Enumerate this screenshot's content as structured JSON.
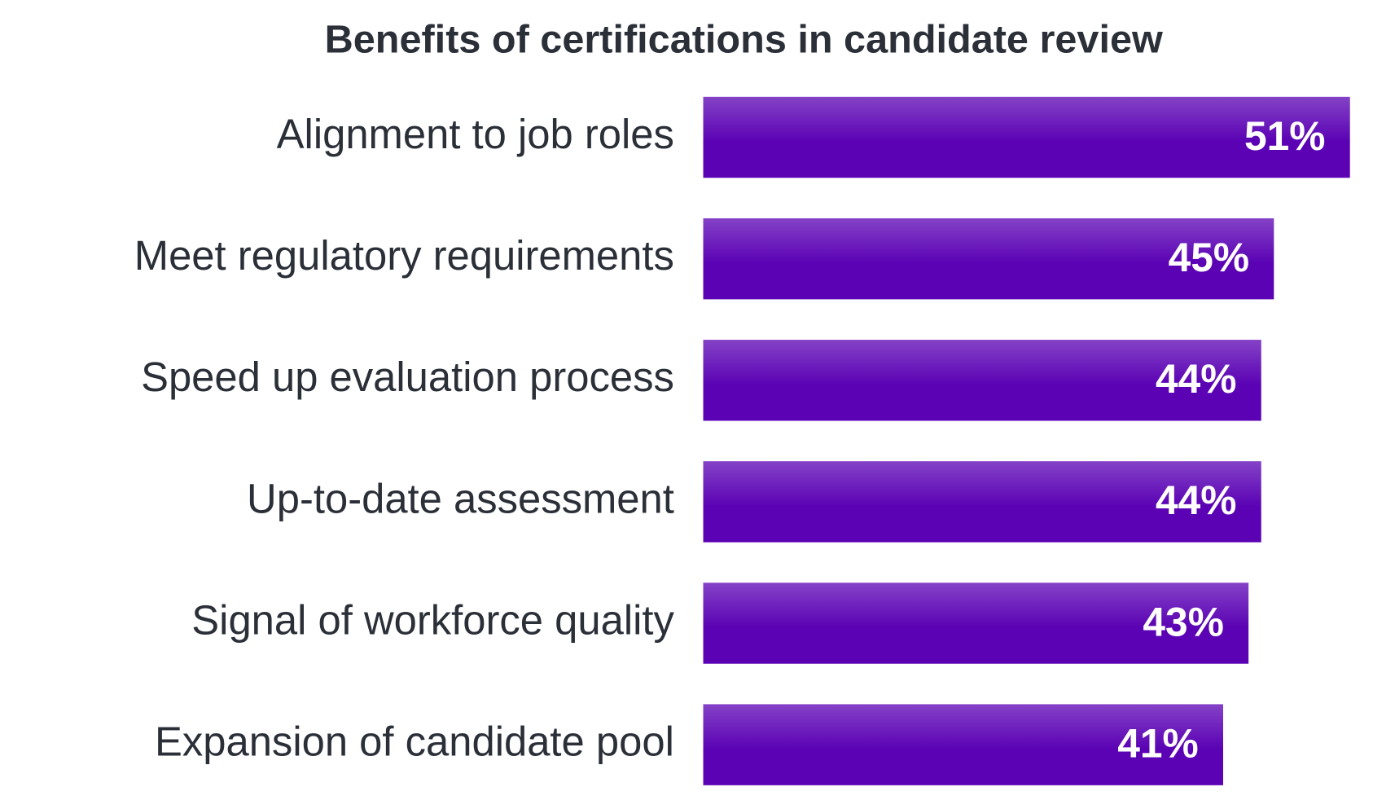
{
  "chart_data": {
    "type": "barh",
    "title": "Benefits of certifications in candidate review",
    "categories": [
      "Alignment to job roles",
      "Meet regulatory requirements",
      "Speed up evaluation process",
      "Up-to-date assessment",
      "Signal of workforce quality",
      "Expansion of candidate pool"
    ],
    "values": [
      51,
      45,
      44,
      44,
      43,
      41
    ],
    "value_labels": [
      "51%",
      "45%",
      "44%",
      "44%",
      "43%",
      "41%"
    ],
    "color": "#5b03b4"
  }
}
